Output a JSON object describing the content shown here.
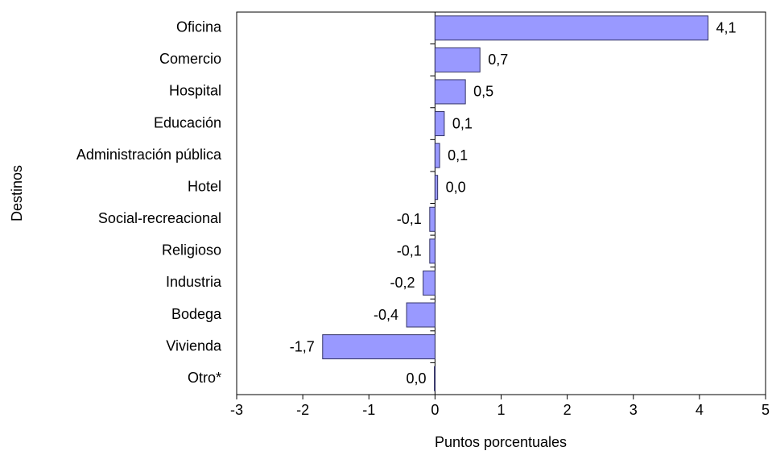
{
  "chart_data": {
    "type": "bar",
    "orientation": "horizontal",
    "x_label": "Puntos porcentuales",
    "y_label": "Destinos",
    "categories": [
      "Oficina",
      "Comercio",
      "Hospital",
      "Educación",
      "Administración pública",
      "Hotel",
      "Social-recreacional",
      "Religioso",
      "Industria",
      "Bodega",
      "Vivienda",
      "Otro*"
    ],
    "values": [
      4.13,
      0.68,
      0.46,
      0.14,
      0.07,
      0.04,
      -0.08,
      -0.08,
      -0.18,
      -0.43,
      -1.7,
      -0.01
    ],
    "value_labels": [
      "4,1",
      "0,7",
      "0,5",
      "0,1",
      "0,1",
      "0,0",
      "-0,1",
      "-0,1",
      "-0,2",
      "-0,4",
      "-1,7",
      "0,0"
    ],
    "color": "#9999ff",
    "xlim": [
      -3,
      5
    ],
    "xticks": [
      -3,
      -2,
      -1,
      0,
      1,
      2,
      3,
      4,
      5
    ]
  }
}
